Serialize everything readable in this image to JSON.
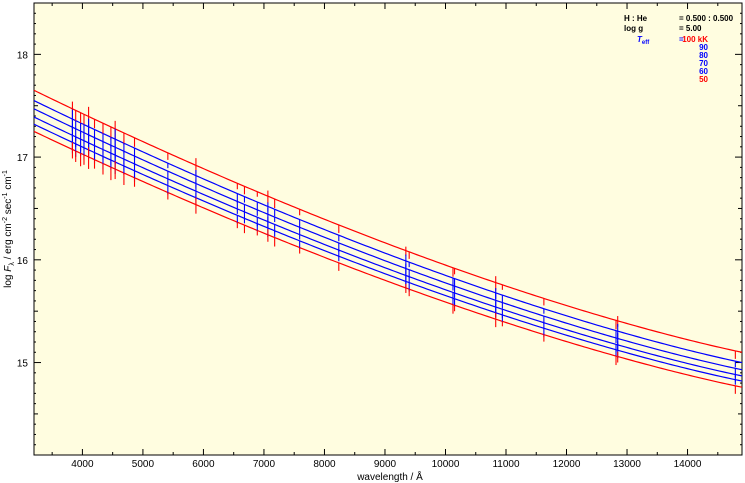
{
  "chart_data": {
    "type": "line",
    "xlabel": "wavelength / Å",
    "ylabel_parts": {
      "prefix": "log ",
      "F": "F",
      "lambda_sub": "λ",
      "unit1": " / erg cm",
      "exp1": "-2",
      "unit2": " sec",
      "exp2": "-1",
      "unit3": " cm",
      "exp3": "-1"
    },
    "xlim": [
      3200,
      14900
    ],
    "ylim": [
      14.1,
      18.5
    ],
    "xticks": [
      4000,
      5000,
      6000,
      7000,
      8000,
      9000,
      10000,
      11000,
      12000,
      13000,
      14000
    ],
    "yticks": [
      15,
      16,
      17,
      18
    ],
    "xtick_labels": [
      "4000",
      "5000",
      "6000",
      "7000",
      "8000",
      "9000",
      "10000",
      "11000",
      "12000",
      "13000",
      "14000"
    ],
    "ytick_labels": [
      "15",
      "16",
      "17",
      "18"
    ],
    "background": "#fffde0",
    "series": [
      {
        "name": "100 kK",
        "color": "#ff0000",
        "y_start": 17.65,
        "y_end": 15.1
      },
      {
        "name": "90",
        "color": "#0000ff",
        "y_start": 17.55,
        "y_end": 15.0
      },
      {
        "name": "80",
        "color": "#0000ff",
        "y_start": 17.47,
        "y_end": 14.93
      },
      {
        "name": "70",
        "color": "#0000ff",
        "y_start": 17.39,
        "y_end": 14.87
      },
      {
        "name": "60",
        "color": "#0000ff",
        "y_start": 17.32,
        "y_end": 14.82
      },
      {
        "name": "50",
        "color": "#ff0000",
        "y_start": 17.25,
        "y_end": 14.76
      }
    ],
    "lines": [
      3835,
      3889,
      3970,
      4026,
      4102,
      4200,
      4340,
      4471,
      4541,
      4686,
      4861,
      5412,
      5876,
      6560,
      6678,
      6890,
      7065,
      7177,
      7590,
      8237,
      9345,
      9400,
      10124,
      10150,
      10830,
      10940,
      11626,
      12818,
      12846,
      14790
    ],
    "legend": {
      "rows": [
        {
          "label": "H : He",
          "value": "= 0.500 : 0.500"
        },
        {
          "label": "log g",
          "value": "= 5.00"
        }
      ],
      "teff_label": "T",
      "teff_sub": "eff",
      "teff_eq": "=",
      "entries": [
        {
          "text": "100 kK",
          "color": "#ff0000"
        },
        {
          "text": "90",
          "color": "#0000ff"
        },
        {
          "text": "80",
          "color": "#0000ff"
        },
        {
          "text": "70",
          "color": "#0000ff"
        },
        {
          "text": "60",
          "color": "#0000ff"
        },
        {
          "text": "50",
          "color": "#ff0000"
        }
      ]
    }
  }
}
